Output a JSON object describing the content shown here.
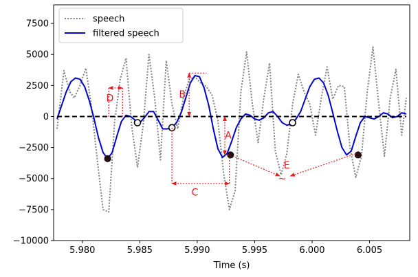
{
  "chart_data": {
    "type": "line",
    "xlabel": "Time (s)",
    "ylabel": "",
    "xlim": [
      5.9775,
      6.0085
    ],
    "ylim": [
      -10000,
      9000
    ],
    "x_ticks": [
      5.98,
      5.985,
      5.99,
      5.995,
      6.0,
      6.005
    ],
    "x_tick_labels": [
      "5.980",
      "5.985",
      "5.990",
      "5.995",
      "6.000",
      "6.005"
    ],
    "y_ticks": [
      -10000,
      -7500,
      -5000,
      -2500,
      0,
      2500,
      5000,
      7500
    ],
    "y_tick_labels": [
      "−10000",
      "−7500",
      "−5000",
      "−2500",
      "0",
      "2500",
      "5000",
      "7500"
    ],
    "grid": false,
    "legend": {
      "placement": "top-left",
      "entries": [
        "speech",
        "filtered speech"
      ]
    },
    "series": [
      {
        "name": "speech",
        "style": "dotted",
        "color": "#808080",
        "x": [
          5.9778,
          5.9784,
          5.9789,
          5.9793,
          5.9798,
          5.9803,
          5.9808,
          5.9813,
          5.9818,
          5.9823,
          5.9828,
          5.9833,
          5.9838,
          5.9843,
          5.9848,
          5.9853,
          5.9858,
          5.9863,
          5.9868,
          5.9873,
          5.9878,
          5.9883,
          5.9888,
          5.9893,
          5.9898,
          5.9903,
          5.9908,
          5.9913,
          5.9918,
          5.9923,
          5.9928,
          5.9933,
          5.9938,
          5.9943,
          5.9948,
          5.9953,
          5.9958,
          5.9963,
          5.9968,
          5.9973,
          5.9978,
          5.9983,
          5.9988,
          5.9993,
          5.9998,
          6.0003,
          6.0008,
          6.0013,
          6.0018,
          6.0023,
          6.0028,
          6.0033,
          6.0038,
          6.0043,
          6.0048,
          6.0053,
          6.0058,
          6.0063,
          6.0068,
          6.0073,
          6.0078,
          6.0082
        ],
        "values": [
          -1000,
          3700,
          2000,
          1500,
          2500,
          3900,
          800,
          -3500,
          -7500,
          -7700,
          -500,
          3000,
          4700,
          -800,
          -4100,
          -700,
          5000,
          1500,
          -3500,
          4500,
          1000,
          -1000,
          1500,
          3000,
          3200,
          2700,
          2400,
          1700,
          -300,
          -4600,
          -7500,
          -6000,
          2000,
          5200,
          1000,
          -2100,
          1500,
          4300,
          -2800,
          -4700,
          -3000,
          1000,
          3400,
          2000,
          1000,
          -1500,
          1500,
          4000,
          1400,
          2500,
          2400,
          -2500,
          -4900,
          -3200,
          2000,
          5600,
          1000,
          -3200,
          1500,
          3800,
          -1500,
          1500
        ]
      },
      {
        "name": "filtered speech",
        "style": "solid",
        "color": "#0000cc",
        "x": [
          5.9778,
          5.9782,
          5.9786,
          5.979,
          5.9794,
          5.9798,
          5.9802,
          5.9806,
          5.981,
          5.9814,
          5.9818,
          5.9822,
          5.9826,
          5.983,
          5.9834,
          5.9838,
          5.9842,
          5.9846,
          5.985,
          5.9854,
          5.9858,
          5.9862,
          5.9866,
          5.987,
          5.9874,
          5.9878,
          5.9882,
          5.9886,
          5.989,
          5.9894,
          5.9898,
          5.9902,
          5.9906,
          5.991,
          5.9914,
          5.9918,
          5.9922,
          5.9926,
          5.993,
          5.9934,
          5.9938,
          5.9942,
          5.9946,
          5.995,
          5.9954,
          5.9958,
          5.9962,
          5.9966,
          5.997,
          5.9974,
          5.9978,
          5.9982,
          5.9986,
          5.999,
          5.9994,
          5.9998,
          6.0002,
          6.0006,
          6.001,
          6.0014,
          6.0018,
          6.0022,
          6.0026,
          6.003,
          6.0034,
          6.0038,
          6.0042,
          6.0046,
          6.005,
          6.0054,
          6.0058,
          6.0062,
          6.0066,
          6.007,
          6.0074,
          6.0078,
          6.0082
        ],
        "values": [
          -200,
          900,
          2000,
          2800,
          3100,
          3000,
          2400,
          1300,
          -100,
          -1700,
          -2900,
          -3400,
          -2900,
          -1600,
          -400,
          100,
          0,
          -300,
          -500,
          -100,
          400,
          400,
          -300,
          -1000,
          -1000,
          -900,
          -500,
          300,
          1500,
          2700,
          3300,
          3200,
          2300,
          900,
          -1000,
          -2600,
          -3300,
          -3000,
          -2000,
          -900,
          -200,
          200,
          100,
          -200,
          -300,
          -100,
          300,
          400,
          0,
          -500,
          -700,
          -600,
          -200,
          400,
          1400,
          2400,
          3000,
          3100,
          2700,
          1700,
          300,
          -1200,
          -2500,
          -3100,
          -2800,
          -1600,
          -500,
          0,
          -100,
          -200,
          0,
          300,
          200,
          -100,
          0,
          300,
          200
        ]
      },
      {
        "name": "",
        "style": "dashed",
        "color": "#000000",
        "x": [
          5.9778,
          6.0082
        ],
        "values": [
          0,
          0
        ]
      }
    ],
    "markers": {
      "filled": [
        {
          "x": 5.9822,
          "y": -3400
        },
        {
          "x": 5.9929,
          "y": -3100
        },
        {
          "x": 6.004,
          "y": -3100
        }
      ],
      "open": [
        {
          "x": 5.9848,
          "y": -500
        },
        {
          "x": 5.9878,
          "y": -900
        },
        {
          "x": 5.9983,
          "y": -500
        }
      ]
    },
    "annotations": [
      {
        "label": "A",
        "x": 5.9927,
        "y": -1500
      },
      {
        "label": "B",
        "x": 5.9887,
        "y": 1800
      },
      {
        "label": "C",
        "x": 5.9898,
        "y": -6100
      },
      {
        "label": "D",
        "x": 5.9824,
        "y": 1500
      },
      {
        "label": "E",
        "x": 5.9978,
        "y": -3900
      },
      {
        "label": "~",
        "x": 5.9974,
        "y": -5000
      }
    ]
  }
}
